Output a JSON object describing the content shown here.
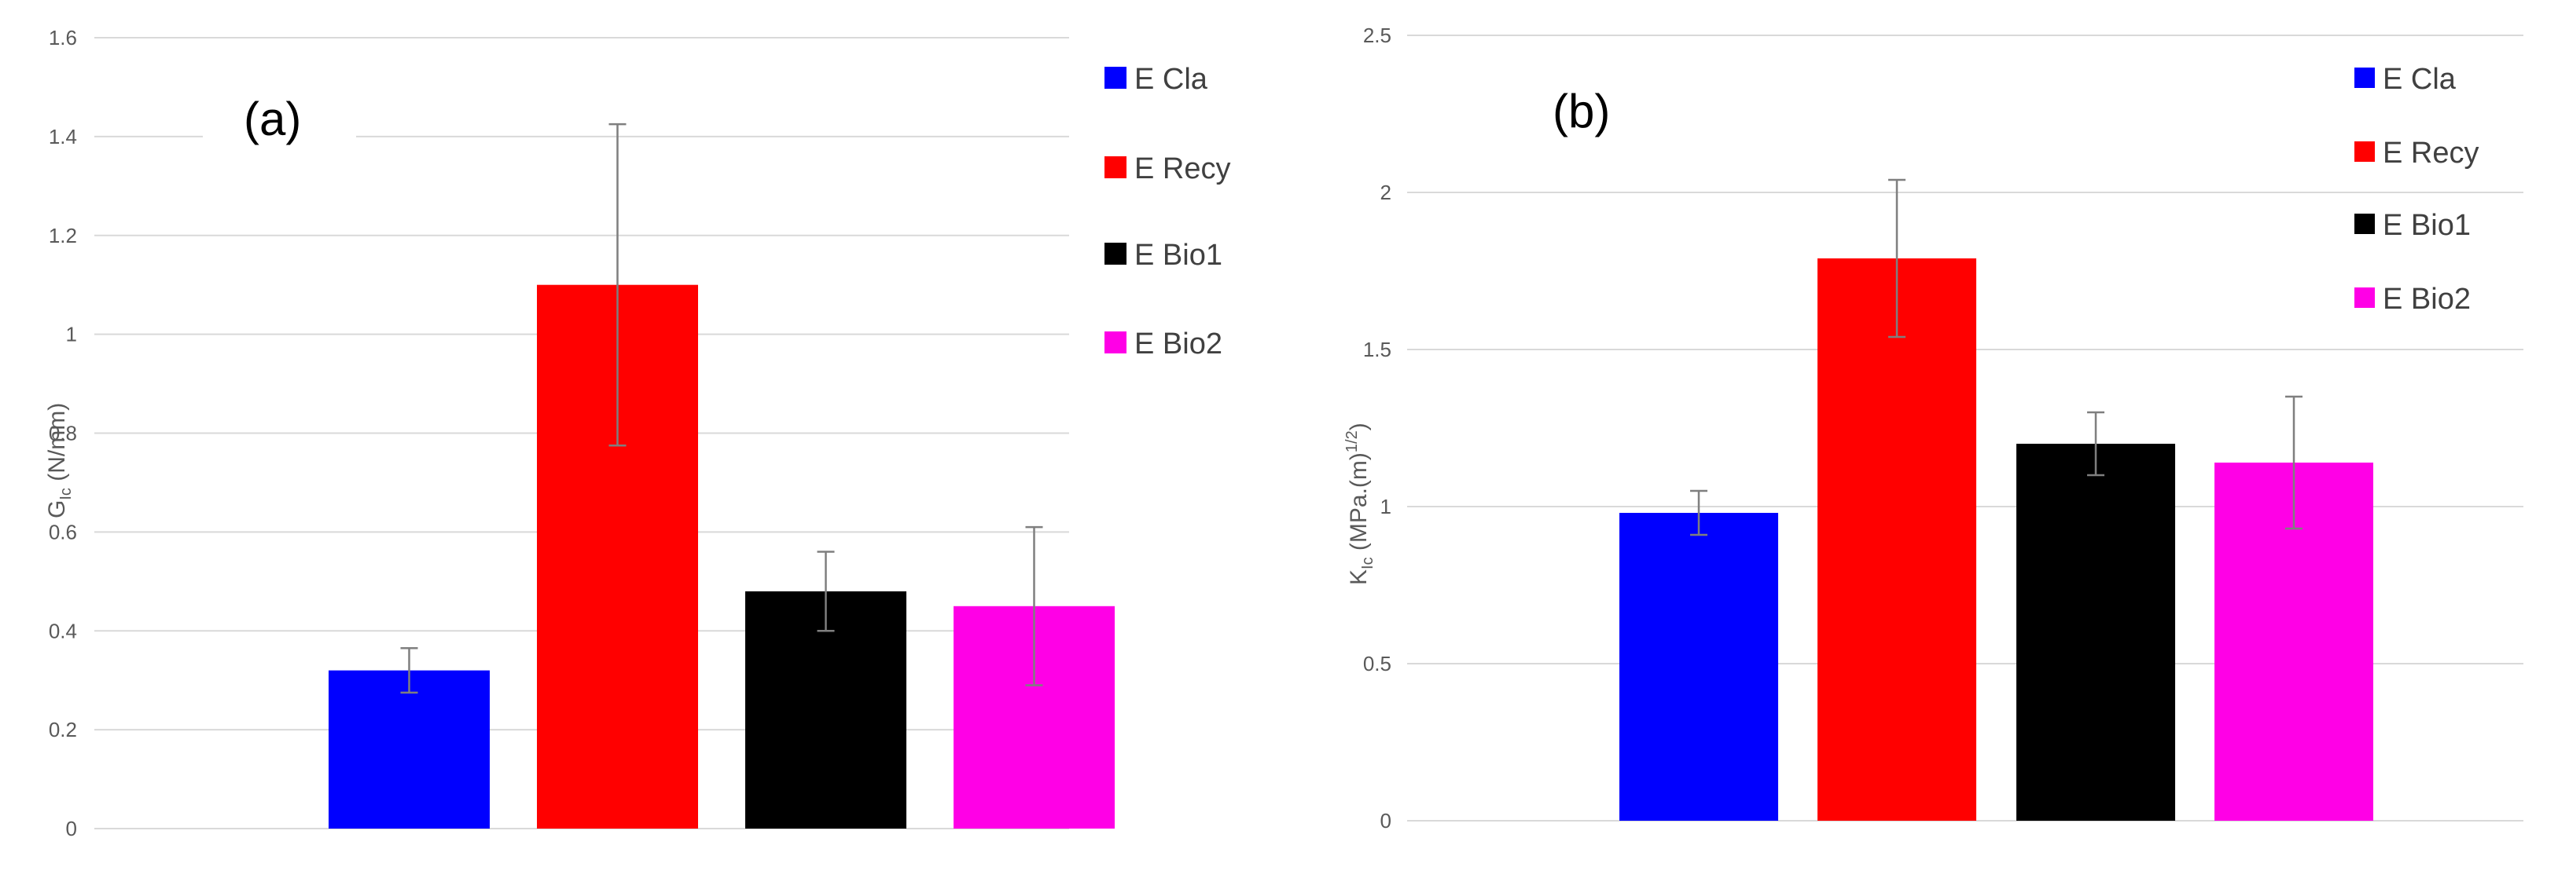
{
  "chart_data": [
    {
      "type": "bar",
      "panel_label": "(a)",
      "ylabel_main": "G",
      "ylabel_sub": "Ic",
      "ylabel_rest": " (N/mm)",
      "ylim": [
        0,
        1.6
      ],
      "yticks": [
        "0",
        "0.2",
        "0.4",
        "0.6",
        "0.8",
        "1",
        "1.2",
        "1.4",
        "1.6"
      ],
      "grid": true,
      "legend_position": "right",
      "series": [
        {
          "name": "E Cla",
          "color": "#0000ff",
          "value": 0.32,
          "error": 0.045
        },
        {
          "name": "E Recy",
          "color": "#ff0000",
          "value": 1.1,
          "error": 0.325
        },
        {
          "name": "E Bio1",
          "color": "#000000",
          "value": 0.48,
          "error": 0.08
        },
        {
          "name": "E Bio2",
          "color": "#ff00e6",
          "value": 0.45,
          "error": 0.16
        }
      ]
    },
    {
      "type": "bar",
      "panel_label": "(b)",
      "ylabel_main": "K",
      "ylabel_sub": "Ic",
      "ylabel_rest": " (MPa.(m)",
      "ylabel_sup": "1/2",
      "ylabel_end": ")",
      "ylim": [
        0,
        2.5
      ],
      "yticks": [
        "0",
        "0.5",
        "1",
        "1.5",
        "2",
        "2.5"
      ],
      "grid": true,
      "legend_position": "right",
      "series": [
        {
          "name": "E Cla",
          "color": "#0000ff",
          "value": 0.98,
          "error": 0.07
        },
        {
          "name": "E Recy",
          "color": "#ff0000",
          "value": 1.79,
          "error": 0.25
        },
        {
          "name": "E Bio1",
          "color": "#000000",
          "value": 1.2,
          "error": 0.1
        },
        {
          "name": "E Bio2",
          "color": "#ff00e6",
          "value": 1.14,
          "error": 0.21
        }
      ]
    }
  ]
}
